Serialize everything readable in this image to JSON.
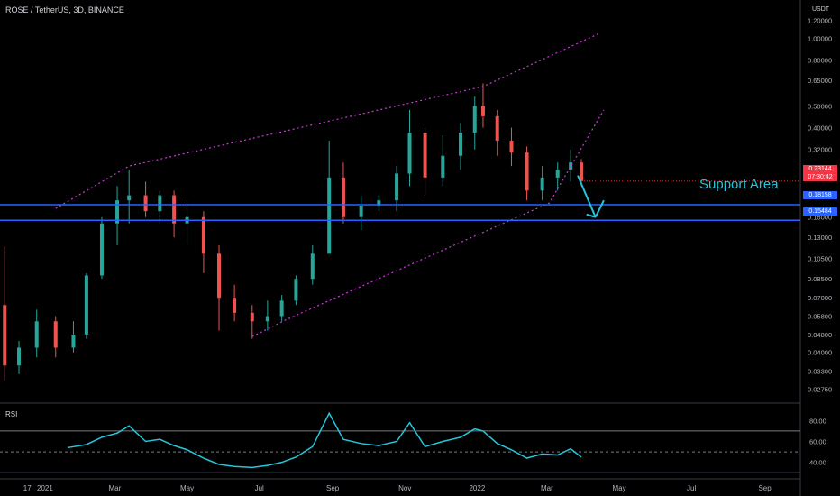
{
  "chart_data": {
    "type": "candlestick",
    "title": "ROSE / TetherUS, 3D, BINANCE",
    "price_unit": "USDT",
    "y_scale": "log",
    "ylim": [
      0.024,
      1.35
    ],
    "price_ticks": [
      "1.20000",
      "1.00000",
      "0.80000",
      "0.65000",
      "0.50000",
      "0.40000",
      "0.32000",
      "0.26000",
      "0.20000",
      "0.16000",
      "0.13000",
      "0.10500",
      "0.08500",
      "0.07000",
      "0.05800",
      "0.04800",
      "0.04000",
      "0.03300",
      "0.02750"
    ],
    "time_ticks": [
      "17",
      "2021",
      "Mar",
      "May",
      "Jul",
      "Sep",
      "Nov",
      "2022",
      "Mar",
      "May",
      "Jul",
      "Sep"
    ],
    "current_price": {
      "value": "0.23144",
      "countdown": "07:30:42",
      "color": "#f23645"
    },
    "support_levels": [
      {
        "value": "0.18158",
        "color": "#2962ff"
      },
      {
        "value": "0.15484",
        "color": "#2962ff"
      }
    ],
    "annotation": "Support Area",
    "annotation_color": "#26c6da",
    "trendline_color": "#c83ad6",
    "channel_lines": {
      "upper": [
        [
          "2021-01-10",
          0.175
        ],
        [
          "2021-03-13",
          0.27
        ],
        [
          "2022-01-06",
          0.61
        ],
        [
          "2022-04-14",
          1.05
        ]
      ],
      "lower": [
        [
          "2021-06-25",
          0.047
        ],
        [
          "2021-07-24",
          0.056
        ],
        [
          "2022-03-03",
          0.185
        ],
        [
          "2022-04-18",
          0.48
        ]
      ]
    },
    "projection_arrow": [
      [
        "2022-03-27",
        0.245
      ],
      [
        "2022-04-11",
        0.16
      ],
      [
        "2022-04-18",
        0.19
      ]
    ],
    "candles": [
      [
        "2020-11-28",
        0.065,
        0.118,
        0.03,
        0.035
      ],
      [
        "2020-12-10",
        0.035,
        0.045,
        0.032,
        0.042
      ],
      [
        "2020-12-25",
        0.042,
        0.062,
        0.038,
        0.055
      ],
      [
        "2021-01-10",
        0.055,
        0.058,
        0.038,
        0.042
      ],
      [
        "2021-01-25",
        0.042,
        0.055,
        0.04,
        0.048
      ],
      [
        "2021-02-05",
        0.048,
        0.09,
        0.046,
        0.088
      ],
      [
        "2021-02-18",
        0.088,
        0.16,
        0.085,
        0.15
      ],
      [
        "2021-03-03",
        0.15,
        0.22,
        0.12,
        0.19
      ],
      [
        "2021-03-13",
        0.19,
        0.26,
        0.15,
        0.2
      ],
      [
        "2021-03-27",
        0.2,
        0.23,
        0.16,
        0.17
      ],
      [
        "2021-04-08",
        0.17,
        0.21,
        0.15,
        0.2
      ],
      [
        "2021-04-20",
        0.2,
        0.21,
        0.13,
        0.15
      ],
      [
        "2021-05-01",
        0.15,
        0.19,
        0.12,
        0.16
      ],
      [
        "2021-05-15",
        0.16,
        0.17,
        0.09,
        0.11
      ],
      [
        "2021-05-28",
        0.11,
        0.12,
        0.05,
        0.07
      ],
      [
        "2021-06-10",
        0.07,
        0.08,
        0.055,
        0.06
      ],
      [
        "2021-06-25",
        0.06,
        0.065,
        0.046,
        0.055
      ],
      [
        "2021-07-08",
        0.055,
        0.068,
        0.05,
        0.058
      ],
      [
        "2021-07-20",
        0.058,
        0.072,
        0.055,
        0.068
      ],
      [
        "2021-08-01",
        0.068,
        0.088,
        0.065,
        0.085
      ],
      [
        "2021-08-15",
        0.085,
        0.12,
        0.08,
        0.11
      ],
      [
        "2021-08-29",
        0.11,
        0.35,
        0.11,
        0.24
      ],
      [
        "2021-09-10",
        0.24,
        0.28,
        0.15,
        0.16
      ],
      [
        "2021-09-25",
        0.16,
        0.2,
        0.14,
        0.18
      ],
      [
        "2021-10-10",
        0.18,
        0.2,
        0.17,
        0.19
      ],
      [
        "2021-10-25",
        0.19,
        0.27,
        0.17,
        0.25
      ],
      [
        "2021-11-05",
        0.25,
        0.48,
        0.22,
        0.38
      ],
      [
        "2021-11-18",
        0.38,
        0.4,
        0.2,
        0.24
      ],
      [
        "2021-12-03",
        0.24,
        0.37,
        0.22,
        0.3
      ],
      [
        "2021-12-18",
        0.3,
        0.42,
        0.26,
        0.38
      ],
      [
        "2021-12-30",
        0.38,
        0.55,
        0.32,
        0.5
      ],
      [
        "2022-01-06",
        0.5,
        0.63,
        0.4,
        0.45
      ],
      [
        "2022-01-18",
        0.45,
        0.48,
        0.3,
        0.35
      ],
      [
        "2022-01-30",
        0.35,
        0.4,
        0.27,
        0.31
      ],
      [
        "2022-02-12",
        0.31,
        0.33,
        0.19,
        0.21
      ],
      [
        "2022-02-25",
        0.21,
        0.27,
        0.19,
        0.24
      ],
      [
        "2022-03-10",
        0.24,
        0.28,
        0.21,
        0.26
      ],
      [
        "2022-03-21",
        0.26,
        0.32,
        0.23,
        0.28
      ],
      [
        "2022-03-30",
        0.28,
        0.29,
        0.22,
        0.23144
      ]
    ],
    "rsi": {
      "label": "RSI",
      "ylim": [
        25,
        95
      ],
      "ticks": [
        "80.00",
        "60.00",
        "40.00"
      ],
      "levels": [
        70,
        50,
        30
      ],
      "color": "#26c6da",
      "points": [
        [
          "2021-01-20",
          54
        ],
        [
          "2021-02-05",
          57
        ],
        [
          "2021-02-18",
          64
        ],
        [
          "2021-03-03",
          68
        ],
        [
          "2021-03-13",
          75
        ],
        [
          "2021-03-27",
          60
        ],
        [
          "2021-04-08",
          62
        ],
        [
          "2021-04-20",
          56
        ],
        [
          "2021-05-01",
          52
        ],
        [
          "2021-05-15",
          44
        ],
        [
          "2021-05-28",
          38
        ],
        [
          "2021-06-10",
          36
        ],
        [
          "2021-06-25",
          35
        ],
        [
          "2021-07-08",
          37
        ],
        [
          "2021-07-20",
          40
        ],
        [
          "2021-08-01",
          45
        ],
        [
          "2021-08-15",
          55
        ],
        [
          "2021-08-29",
          87
        ],
        [
          "2021-09-10",
          62
        ],
        [
          "2021-09-25",
          58
        ],
        [
          "2021-10-10",
          56
        ],
        [
          "2021-10-25",
          60
        ],
        [
          "2021-11-05",
          78
        ],
        [
          "2021-11-18",
          55
        ],
        [
          "2021-12-03",
          60
        ],
        [
          "2021-12-18",
          64
        ],
        [
          "2021-12-30",
          72
        ],
        [
          "2022-01-06",
          70
        ],
        [
          "2022-01-18",
          58
        ],
        [
          "2022-01-30",
          52
        ],
        [
          "2022-02-12",
          44
        ],
        [
          "2022-02-25",
          48
        ],
        [
          "2022-03-10",
          47
        ],
        [
          "2022-03-21",
          53
        ],
        [
          "2022-03-30",
          45
        ]
      ]
    },
    "candle_colors": {
      "up": "#26a69a",
      "down": "#ef5350"
    }
  }
}
